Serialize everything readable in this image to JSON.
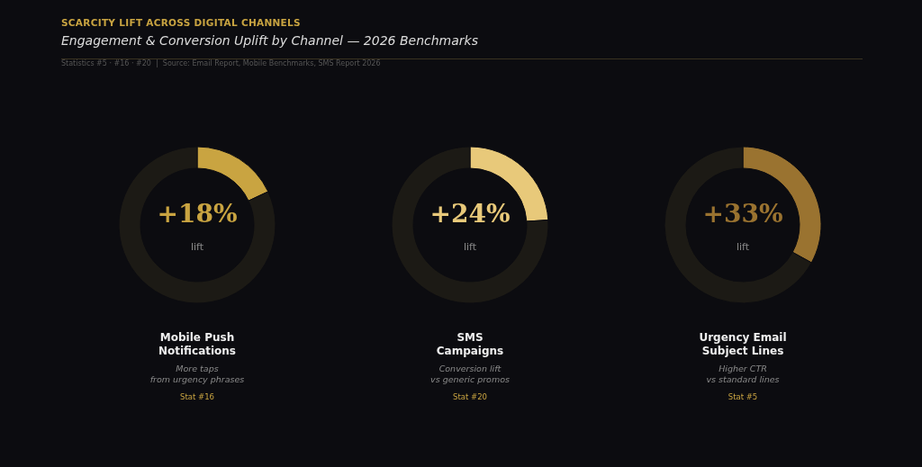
{
  "chart_data": [
    {
      "type": "other",
      "title": "SCARCITY LIFT ACROSS DIGITAL CHANNELS",
      "subtitle": "Engagement & Conversion Uplift by Channel — 2026 Benchmarks",
      "annotations": [
        "Statistics #5 · #16 · #20  |  Source: Email Report, Mobile Benchmarks, SMS Report 2026"
      ]
    },
    {
      "type": "donut",
      "title": "Mobile Push Notifications",
      "subtitle": "More taps from urgency phrases",
      "categories": [
        null,
        null
      ],
      "values": [
        18,
        82
      ],
      "colors": [
        "#c9a441",
        "#1c1a15"
      ],
      "value_labels": [
        "+18%",
        null
      ],
      "annotations": [
        "lift",
        "Stat #16"
      ]
    },
    {
      "type": "donut",
      "title": "SMS Campaigns",
      "subtitle": "Conversion lift vs generic promos",
      "categories": [
        null,
        null
      ],
      "values": [
        24,
        76
      ],
      "colors": [
        "#e8c97a",
        "#1c1a15"
      ],
      "value_labels": [
        "+24%",
        null
      ],
      "annotations": [
        "lift",
        "Stat #20"
      ]
    },
    {
      "type": "donut",
      "title": "Urgency Email Subject Lines",
      "subtitle": "Higher CTR vs standard lines",
      "categories": [
        null,
        null
      ],
      "values": [
        33,
        67
      ],
      "colors": [
        "#9a7330",
        "#1c1a15"
      ],
      "value_labels": [
        "+33%",
        null
      ],
      "annotations": [
        "lift",
        "Stat #5"
      ]
    }
  ]
}
